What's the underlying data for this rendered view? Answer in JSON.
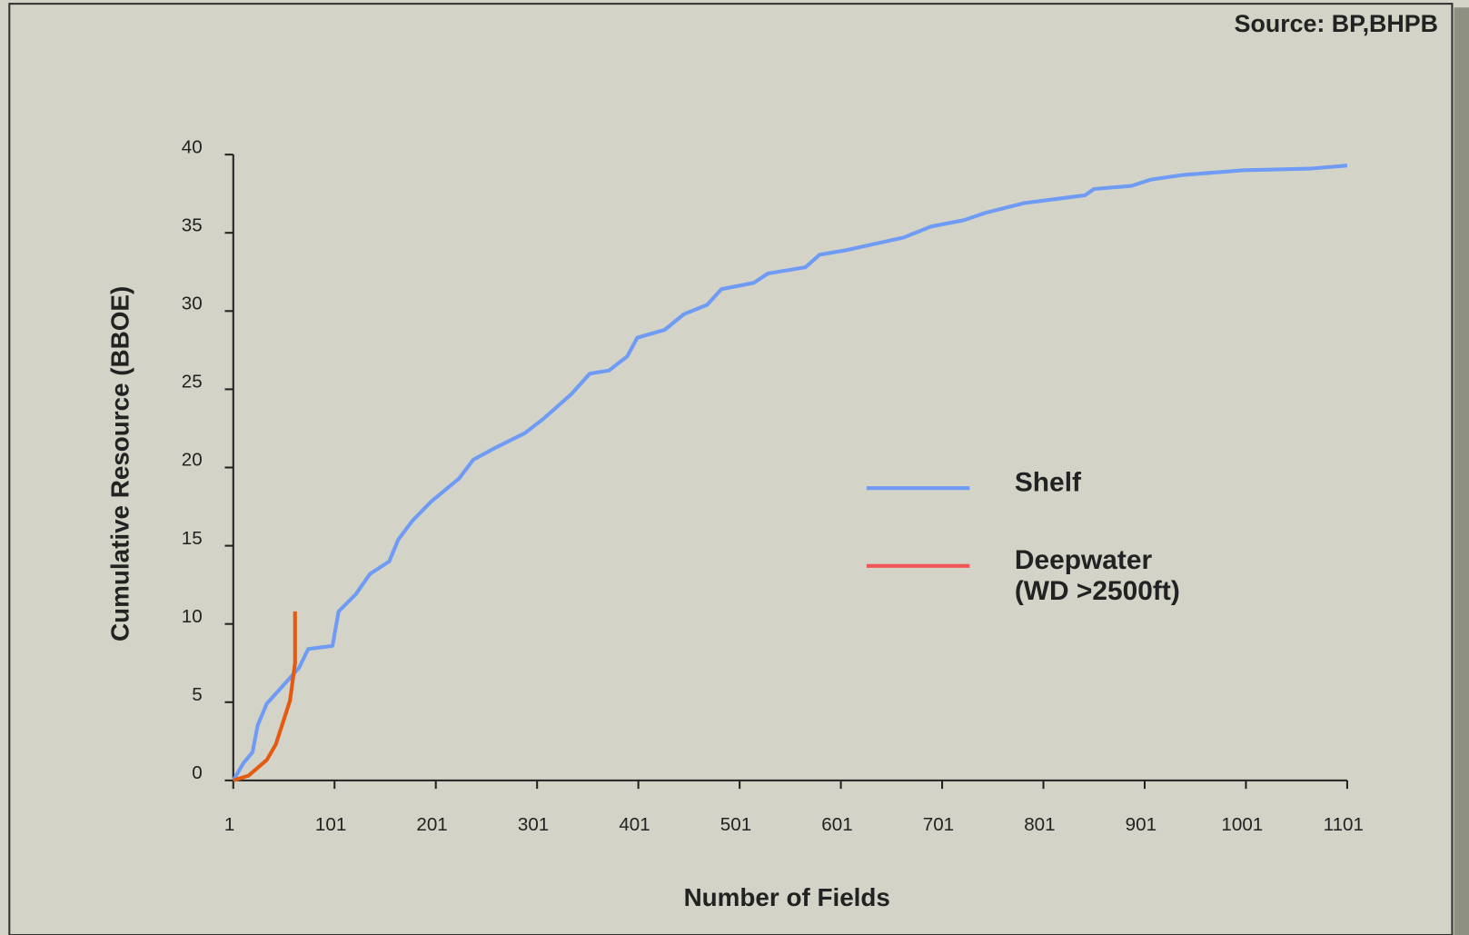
{
  "chart_data": {
    "type": "line",
    "source": "Source:  BP,BHPB",
    "xlabel": "Number of Fields",
    "ylabel": "Cumulative Resource  (BBOE)",
    "xlim": [
      1,
      1101
    ],
    "xticks": [
      1,
      101,
      201,
      301,
      401,
      501,
      601,
      701,
      801,
      901,
      1001,
      1101
    ],
    "ylim": [
      0,
      40
    ],
    "yticks": [
      0,
      5,
      10,
      15,
      20,
      25,
      30,
      35,
      40
    ],
    "series": [
      {
        "name": "Shelf",
        "color": "#6f9bf5",
        "x": [
          1,
          11,
          20,
          25,
          34,
          48,
          66,
          75,
          99,
          105,
          122,
          136,
          155,
          164,
          178,
          196,
          224,
          238,
          261,
          289,
          307,
          335,
          353,
          372,
          390,
          400,
          427,
          446,
          469,
          483,
          515,
          529,
          566,
          580,
          607,
          635,
          663,
          690,
          722,
          745,
          782,
          842,
          851,
          888,
          907,
          939,
          999,
          1064,
          1101
        ],
        "values": [
          0,
          1.1,
          1.8,
          3.5,
          4.9,
          5.9,
          7.2,
          8.4,
          8.6,
          10.8,
          11.9,
          13.2,
          14,
          15.4,
          16.6,
          17.8,
          19.3,
          20.5,
          21.3,
          22.2,
          23.1,
          24.7,
          26,
          26.2,
          27.1,
          28.3,
          28.8,
          29.8,
          30.4,
          31.4,
          31.8,
          32.4,
          32.8,
          33.6,
          33.9,
          34.3,
          34.7,
          35.4,
          35.8,
          36.3,
          36.9,
          37.4,
          37.8,
          38,
          38.4,
          38.7,
          39,
          39.1,
          39.3
        ]
      },
      {
        "name": "Deepwater (WD >2500ft)",
        "color": "#e35a10",
        "legend_color": "#f05656",
        "x": [
          1,
          16,
          34,
          43,
          57,
          62,
          62
        ],
        "values": [
          0,
          0.3,
          1.3,
          2.3,
          5.1,
          7.5,
          10.8
        ]
      }
    ]
  }
}
